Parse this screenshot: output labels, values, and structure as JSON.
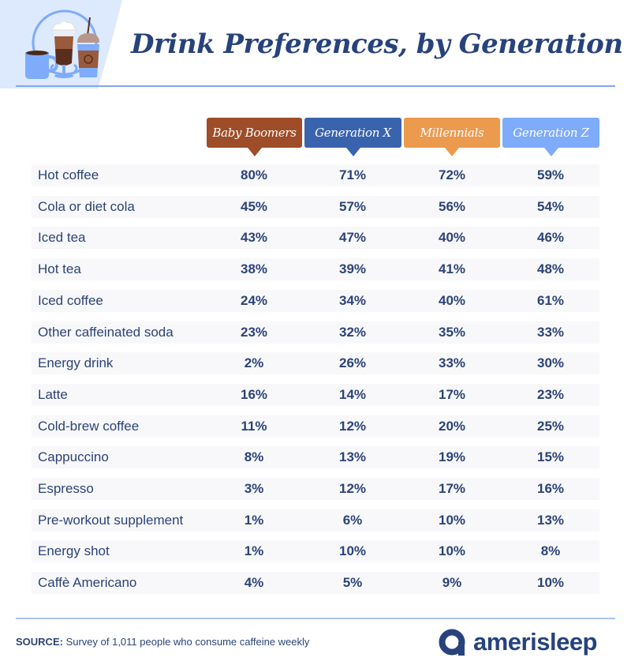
{
  "header": {
    "title": "Drink Preferences, by Generation",
    "illustration_icon": "coffee-drinks-icon"
  },
  "colors": {
    "baby_boomers": "#9e4d28",
    "generation_x": "#3a63ae",
    "millennials": "#ec9a4d",
    "generation_z": "#7eabfa",
    "text": "#2c4377",
    "rule": "#7fa8f0",
    "row_bg": "#f8f8fa"
  },
  "chart_data": {
    "type": "table",
    "title": "Drink Preferences, by Generation",
    "columns": [
      "Baby Boomers",
      "Generation X",
      "Millennials",
      "Generation Z"
    ],
    "rows": [
      {
        "label": "Hot coffee",
        "values": [
          "80%",
          "71%",
          "72%",
          "59%"
        ]
      },
      {
        "label": "Cola or diet cola",
        "values": [
          "45%",
          "57%",
          "56%",
          "54%"
        ]
      },
      {
        "label": "Iced tea",
        "values": [
          "43%",
          "47%",
          "40%",
          "46%"
        ]
      },
      {
        "label": "Hot tea",
        "values": [
          "38%",
          "39%",
          "41%",
          "48%"
        ]
      },
      {
        "label": "Iced coffee",
        "values": [
          "24%",
          "34%",
          "40%",
          "61%"
        ]
      },
      {
        "label": "Other caffeinated soda",
        "values": [
          "23%",
          "32%",
          "35%",
          "33%"
        ]
      },
      {
        "label": "Energy drink",
        "values": [
          "2%",
          "26%",
          "33%",
          "30%"
        ]
      },
      {
        "label": "Latte",
        "values": [
          "16%",
          "14%",
          "17%",
          "23%"
        ]
      },
      {
        "label": "Cold-brew coffee",
        "values": [
          "11%",
          "12%",
          "20%",
          "25%"
        ]
      },
      {
        "label": "Cappuccino",
        "values": [
          "8%",
          "13%",
          "19%",
          "15%"
        ]
      },
      {
        "label": "Espresso",
        "values": [
          "3%",
          "12%",
          "17%",
          "16%"
        ]
      },
      {
        "label": "Pre-workout supplement",
        "values": [
          "1%",
          "6%",
          "10%",
          "13%"
        ]
      },
      {
        "label": "Energy shot",
        "values": [
          "1%",
          "10%",
          "10%",
          "8%"
        ]
      },
      {
        "label": "Caffè Americano",
        "values": [
          "4%",
          "5%",
          "9%",
          "10%"
        ]
      }
    ]
  },
  "footer": {
    "source_label": "SOURCE:",
    "source_text": " Survey of 1,011 people who consume caffeine weekly",
    "brand_name": "amerisleep",
    "brand_icon": "amerisleep-logo-icon"
  }
}
